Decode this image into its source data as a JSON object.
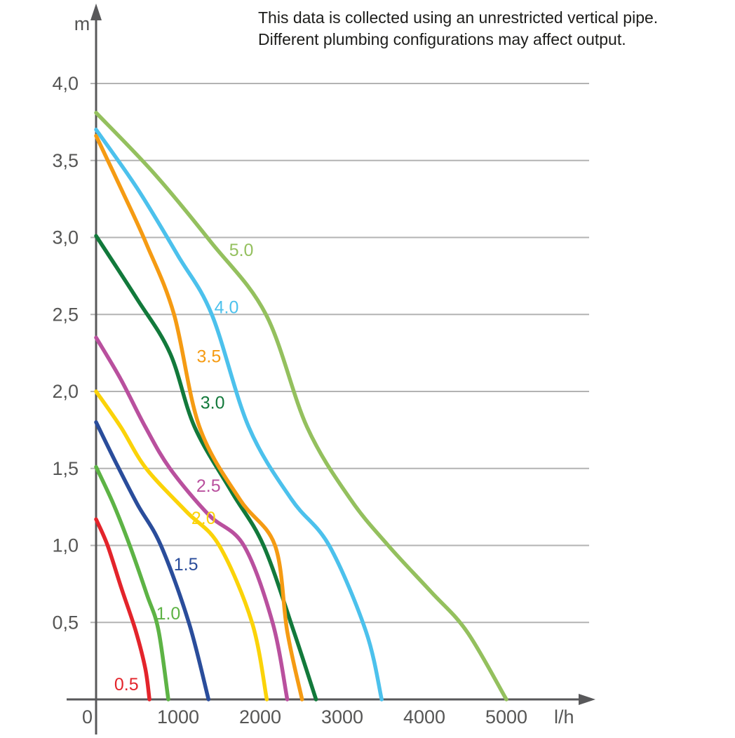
{
  "chart_data": {
    "type": "line",
    "title": "",
    "annotation": {
      "line1": "This data is collected using an unrestricted vertical pipe.",
      "line2": "Different plumbing configurations may affect output."
    },
    "grid": true,
    "legend_position": "labels-on-curves",
    "x_axis": {
      "unit": "l/h",
      "range": [
        0,
        5000
      ],
      "ticks": [
        {
          "label": "0",
          "value": 0
        },
        {
          "label": "1000",
          "value": 1000
        },
        {
          "label": "2000",
          "value": 2000
        },
        {
          "label": "3000",
          "value": 3000
        },
        {
          "label": "4000",
          "value": 4000
        },
        {
          "label": "5000",
          "value": 5000
        }
      ]
    },
    "y_axis": {
      "unit": "m",
      "range": [
        0,
        4.0
      ],
      "decimal_style": "comma",
      "ticks": [
        {
          "label": "4,0",
          "value": 4.0
        },
        {
          "label": "3,5",
          "value": 3.5
        },
        {
          "label": "3,0",
          "value": 3.0
        },
        {
          "label": "2,5",
          "value": 2.5
        },
        {
          "label": "2,0",
          "value": 2.0
        },
        {
          "label": "1,5",
          "value": 1.5
        },
        {
          "label": "1,0",
          "value": 1.0
        },
        {
          "label": "0,5",
          "value": 0.5
        }
      ]
    },
    "series": [
      {
        "name": "0.5",
        "color": "#e3242b",
        "max_head_m": 1.17,
        "max_flow_lh": 650,
        "label_at": [
          370,
          0.1
        ],
        "points": [
          [
            0,
            1.17
          ],
          [
            140,
            1.0
          ],
          [
            310,
            0.72
          ],
          [
            480,
            0.45
          ],
          [
            600,
            0.2
          ],
          [
            650,
            0
          ]
        ]
      },
      {
        "name": "1.0",
        "color": "#5db345",
        "max_head_m": 1.51,
        "max_flow_lh": 880,
        "label_at": [
          880,
          0.56
        ],
        "points": [
          [
            0,
            1.51
          ],
          [
            210,
            1.27
          ],
          [
            410,
            1.0
          ],
          [
            620,
            0.68
          ],
          [
            760,
            0.45
          ],
          [
            880,
            0
          ]
        ]
      },
      {
        "name": "1.5",
        "color": "#2a4d9b",
        "max_head_m": 1.8,
        "max_flow_lh": 1370,
        "label_at": [
          1095,
          0.88
        ],
        "points": [
          [
            0,
            1.8
          ],
          [
            230,
            1.55
          ],
          [
            500,
            1.27
          ],
          [
            790,
            1.0
          ],
          [
            1130,
            0.5
          ],
          [
            1370,
            0
          ]
        ]
      },
      {
        "name": "2.0",
        "color": "#fbd309",
        "max_head_m": 2.0,
        "max_flow_lh": 2080,
        "label_at": [
          1310,
          1.18
        ],
        "points": [
          [
            0,
            2.0
          ],
          [
            300,
            1.77
          ],
          [
            610,
            1.5
          ],
          [
            1100,
            1.22
          ],
          [
            1500,
            1.0
          ],
          [
            1900,
            0.5
          ],
          [
            2080,
            0
          ]
        ]
      },
      {
        "name": "2.5",
        "color": "#b9509e",
        "max_head_m": 2.35,
        "max_flow_lh": 2330,
        "label_at": [
          1370,
          1.39
        ],
        "points": [
          [
            0,
            2.35
          ],
          [
            300,
            2.08
          ],
          [
            600,
            1.77
          ],
          [
            900,
            1.5
          ],
          [
            1370,
            1.2
          ],
          [
            1800,
            1.0
          ],
          [
            2150,
            0.5
          ],
          [
            2330,
            0
          ]
        ]
      },
      {
        "name": "3.0",
        "color": "#12793b",
        "max_head_m": 3.01,
        "max_flow_lh": 2680,
        "label_at": [
          1420,
          1.93
        ],
        "points": [
          [
            0,
            3.01
          ],
          [
            500,
            2.6
          ],
          [
            900,
            2.25
          ],
          [
            1200,
            1.77
          ],
          [
            1650,
            1.35
          ],
          [
            2040,
            1.0
          ],
          [
            2410,
            0.44
          ],
          [
            2680,
            0
          ]
        ]
      },
      {
        "name": "3.5",
        "color": "#f59b13",
        "max_head_m": 3.66,
        "max_flow_lh": 2510,
        "label_at": [
          1375,
          2.23
        ],
        "points": [
          [
            0,
            3.66
          ],
          [
            320,
            3.3
          ],
          [
            620,
            2.95
          ],
          [
            950,
            2.5
          ],
          [
            1260,
            1.77
          ],
          [
            1750,
            1.3
          ],
          [
            2180,
            1.0
          ],
          [
            2330,
            0.44
          ],
          [
            2510,
            0
          ]
        ]
      },
      {
        "name": "4.0",
        "color": "#4cc1ec",
        "max_head_m": 3.7,
        "max_flow_lh": 3480,
        "label_at": [
          1590,
          2.55
        ],
        "points": [
          [
            0,
            3.7
          ],
          [
            500,
            3.32
          ],
          [
            1000,
            2.88
          ],
          [
            1410,
            2.5
          ],
          [
            1860,
            1.77
          ],
          [
            2380,
            1.3
          ],
          [
            2840,
            1.0
          ],
          [
            3290,
            0.44
          ],
          [
            3480,
            0
          ]
        ]
      },
      {
        "name": "5.0",
        "color": "#94c05e",
        "max_head_m": 3.81,
        "max_flow_lh": 5000,
        "label_at": [
          1770,
          2.92
        ],
        "points": [
          [
            0,
            3.81
          ],
          [
            700,
            3.42
          ],
          [
            1400,
            2.97
          ],
          [
            2070,
            2.5
          ],
          [
            2570,
            1.77
          ],
          [
            3100,
            1.3
          ],
          [
            3560,
            1.0
          ],
          [
            4080,
            0.7
          ],
          [
            4520,
            0.44
          ],
          [
            5000,
            0
          ]
        ]
      }
    ]
  }
}
